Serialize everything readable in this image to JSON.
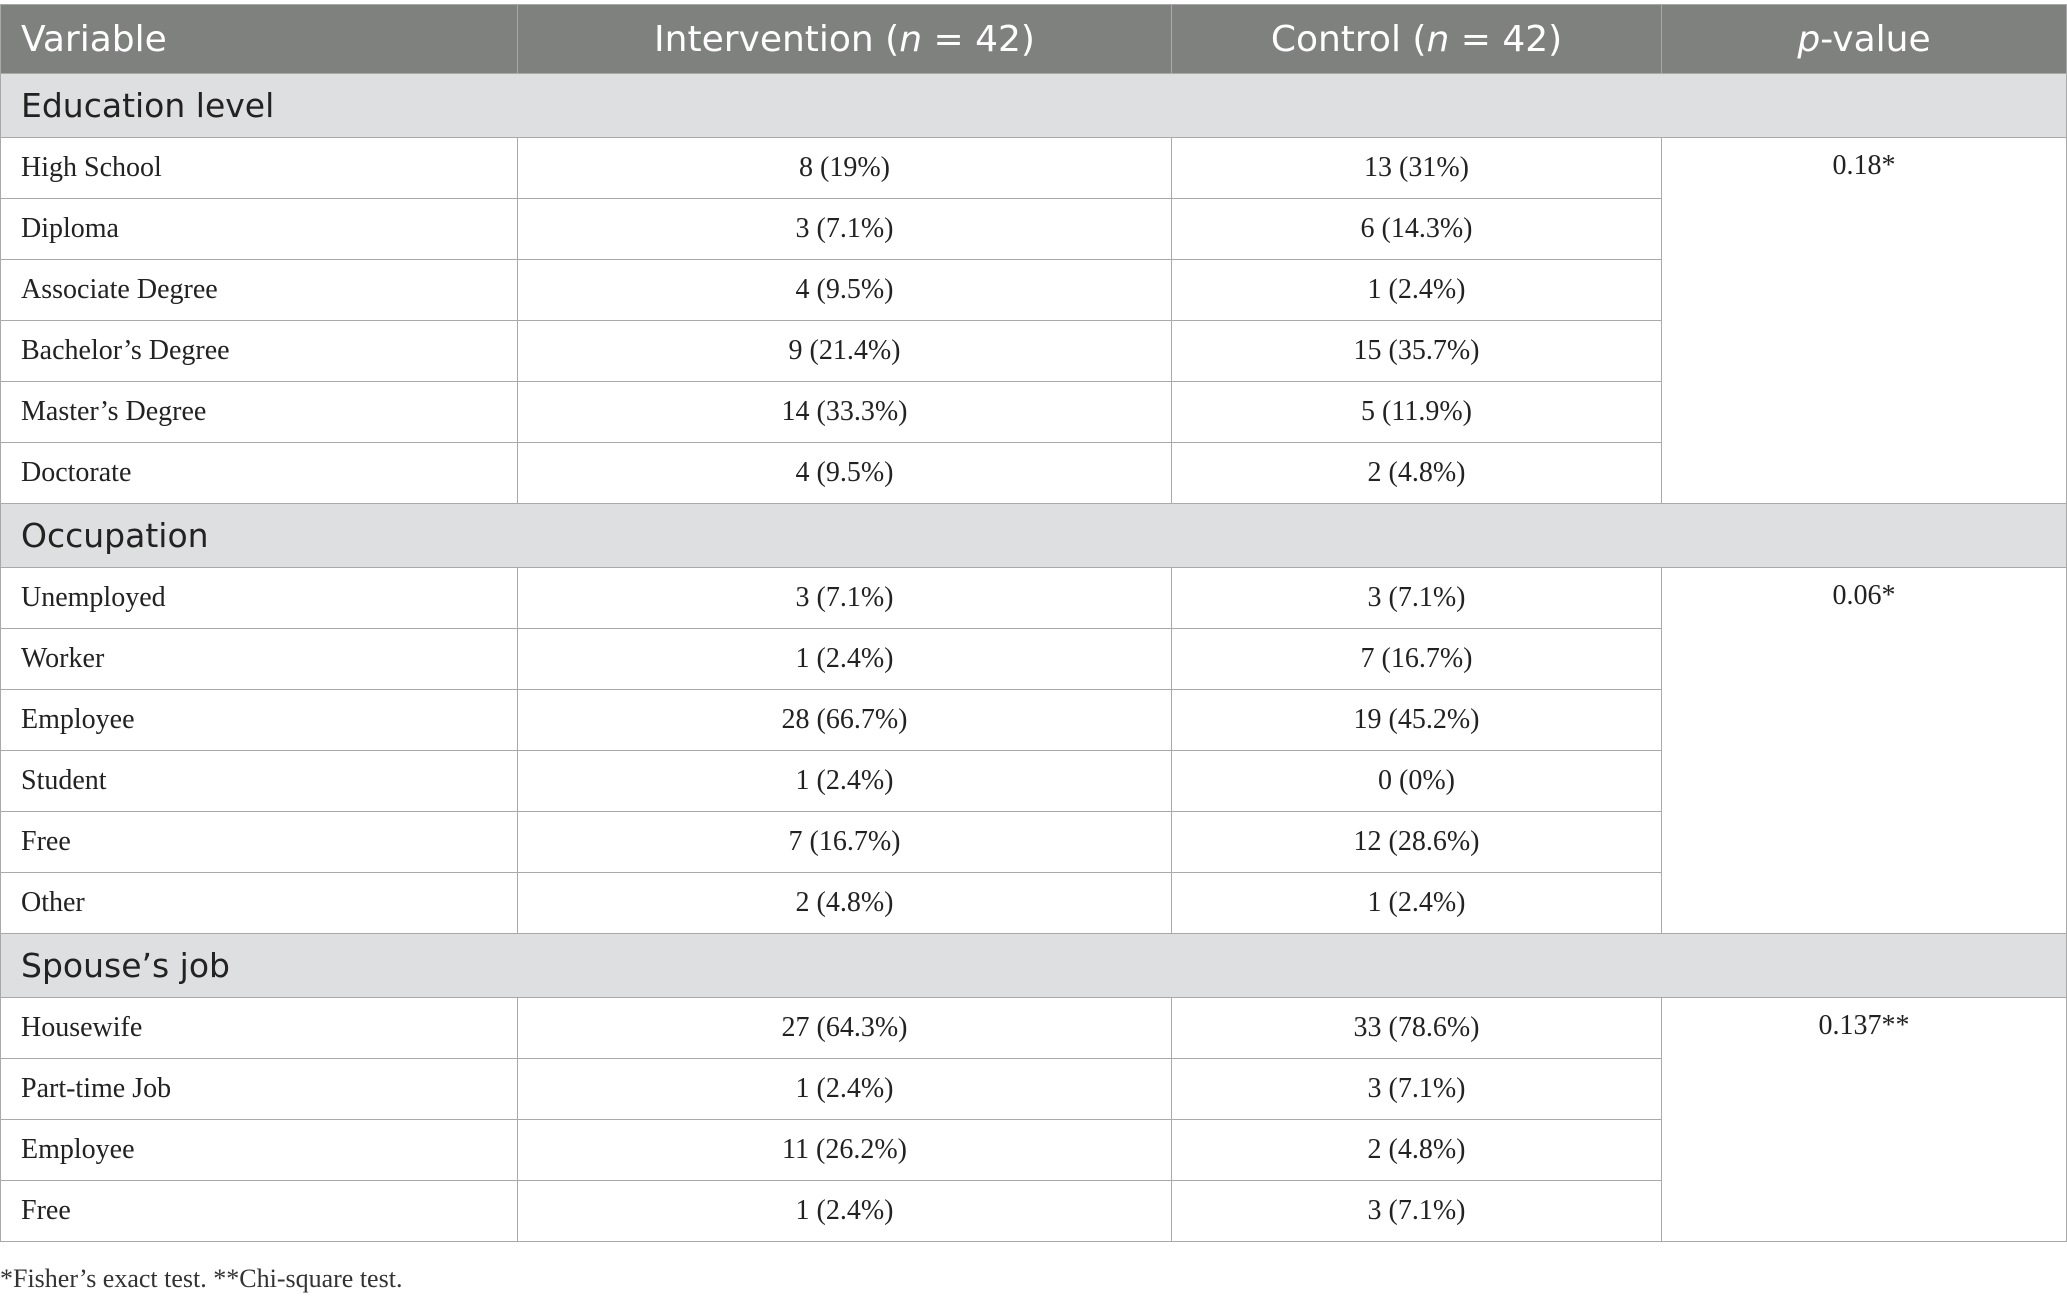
{
  "header": {
    "variable": "Variable",
    "intervention": {
      "prefix": "Intervention (",
      "n": "n",
      "suffix": " = 42)"
    },
    "control": {
      "prefix": "Control (",
      "n": "n",
      "suffix": " = 42)"
    },
    "pvalue": {
      "p": "p",
      "suffix": "-value"
    }
  },
  "sections": [
    {
      "title": "Education level",
      "p_value": "0.18*",
      "rows": [
        {
          "label": "High School",
          "intervention": "8 (19%)",
          "control": "13 (31%)"
        },
        {
          "label": "Diploma",
          "intervention": "3 (7.1%)",
          "control": "6 (14.3%)"
        },
        {
          "label": "Associate Degree",
          "intervention": "4 (9.5%)",
          "control": "1 (2.4%)"
        },
        {
          "label": "Bachelor’s Degree",
          "intervention": "9 (21.4%)",
          "control": "15 (35.7%)"
        },
        {
          "label": "Master’s Degree",
          "intervention": "14 (33.3%)",
          "control": "5 (11.9%)"
        },
        {
          "label": "Doctorate",
          "intervention": "4 (9.5%)",
          "control": "2 (4.8%)"
        }
      ]
    },
    {
      "title": "Occupation",
      "p_value": "0.06*",
      "rows": [
        {
          "label": "Unemployed",
          "intervention": "3 (7.1%)",
          "control": "3 (7.1%)"
        },
        {
          "label": "Worker",
          "intervention": "1 (2.4%)",
          "control": "7 (16.7%)"
        },
        {
          "label": "Employee",
          "intervention": "28 (66.7%)",
          "control": "19 (45.2%)"
        },
        {
          "label": "Student",
          "intervention": "1 (2.4%)",
          "control": "0 (0%)"
        },
        {
          "label": "Free",
          "intervention": "7 (16.7%)",
          "control": "12 (28.6%)"
        },
        {
          "label": "Other",
          "intervention": "2 (4.8%)",
          "control": "1 (2.4%)"
        }
      ]
    },
    {
      "title": "Spouse’s job",
      "p_value": "0.137**",
      "rows": [
        {
          "label": "Housewife",
          "intervention": "27 (64.3%)",
          "control": "33 (78.6%)"
        },
        {
          "label": "Part-time Job",
          "intervention": "1 (2.4%)",
          "control": "3 (7.1%)"
        },
        {
          "label": "Employee",
          "intervention": "11 (26.2%)",
          "control": "2 (4.8%)"
        },
        {
          "label": "Free",
          "intervention": "1 (2.4%)",
          "control": "3 (7.1%)"
        }
      ]
    }
  ],
  "footnote": "*Fisher’s exact test. **Chi-square test."
}
